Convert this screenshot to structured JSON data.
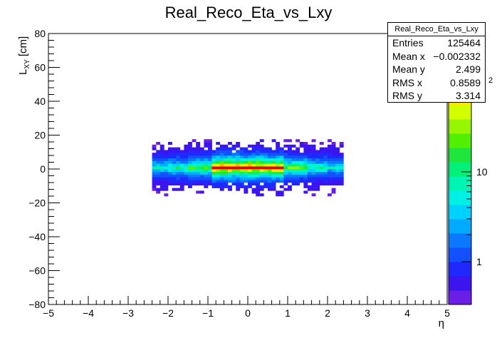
{
  "chart_data": {
    "type": "heatmap",
    "title": "Real_Reco_Eta_vs_Lxy",
    "xlabel": "η",
    "ylabel_main": "L",
    "ylabel_sub": "XY",
    "ylabel_unit": " [cm]",
    "xlim": [
      -5,
      5
    ],
    "ylim": [
      -80,
      80
    ],
    "x_ticks": [
      "−5",
      "−4",
      "−3",
      "−2",
      "−1",
      "0",
      "1",
      "2",
      "3",
      "4",
      "5"
    ],
    "y_ticks": [
      "80",
      "60",
      "40",
      "20",
      "0",
      "−20",
      "−40",
      "−60",
      "−80"
    ],
    "z_scale": "log",
    "z_ticks": [
      "1",
      "10"
    ],
    "z_max_label_fragment": "2",
    "colormap": [
      "#6a1ee6",
      "#3c14f0",
      "#1e28ff",
      "#1450ff",
      "#0a78ff",
      "#00aaff",
      "#00d2ff",
      "#00f0e6",
      "#00f5b4",
      "#00f078",
      "#1ee63c",
      "#50f000",
      "#96f500",
      "#d2ff00",
      "#ffe600",
      "#ffb400",
      "#ff7800",
      "#ff3200",
      "#e60000"
    ],
    "stats": {
      "name": "Real_Reco_Eta_vs_Lxy",
      "rows": [
        {
          "label": "Entries",
          "value": "125464"
        },
        {
          "label": "Mean x",
          "value": "−0.002332"
        },
        {
          "label": "Mean y",
          "value": "2.499"
        },
        {
          "label": "RMS x",
          "value": "0.8589"
        },
        {
          "label": "RMS y",
          "value": "3.314"
        }
      ]
    }
  }
}
